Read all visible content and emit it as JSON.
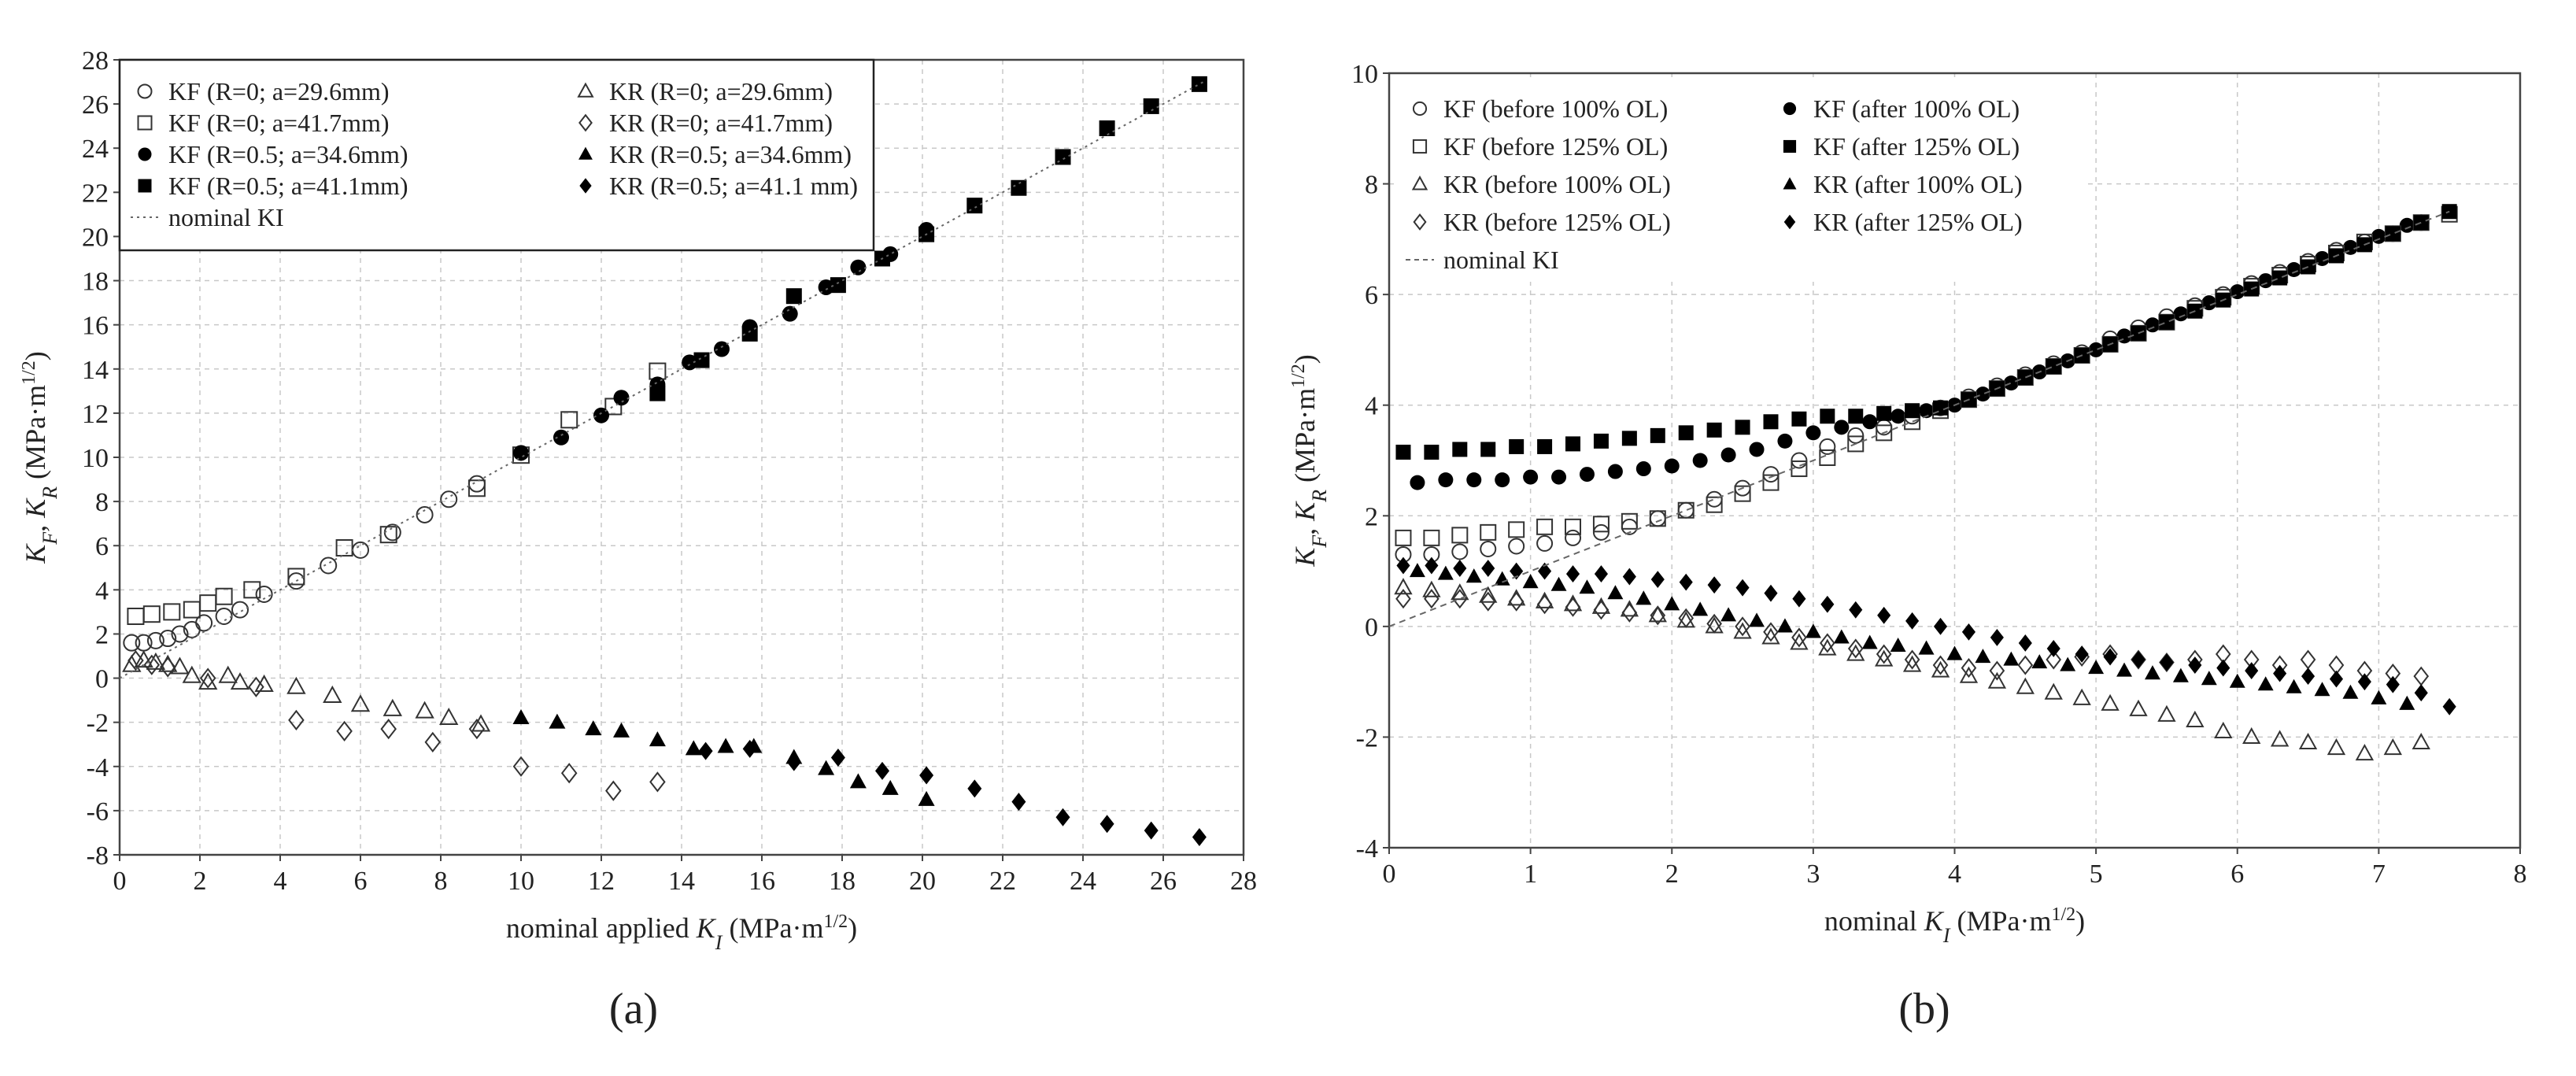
{
  "figure": {
    "panel_labels": [
      "(a)",
      "(b)"
    ]
  },
  "chart_data": [
    {
      "type": "scatter",
      "panel": "(a)",
      "title": "",
      "xlabel": "nominal applied K_I (MPa·m^1/2)",
      "ylabel": "K_F, K_R (MPa·m^1/2)",
      "xlim": [
        0,
        28
      ],
      "ylim": [
        -8,
        28
      ],
      "xticks": [
        0,
        2,
        4,
        6,
        8,
        10,
        12,
        14,
        16,
        18,
        20,
        22,
        24,
        26,
        28
      ],
      "yticks": [
        -8,
        -6,
        -4,
        -2,
        0,
        2,
        4,
        6,
        8,
        10,
        12,
        14,
        16,
        18,
        20,
        22,
        24,
        26,
        28
      ],
      "grid": true,
      "legend_position": "top-left",
      "legend_columns": 2,
      "series": [
        {
          "name": "KF (R=0; a=29.6mm)",
          "marker": "circle-open",
          "x": [
            0.3,
            0.6,
            0.9,
            1.2,
            1.5,
            1.8,
            2.1,
            2.6,
            3.0,
            3.6,
            4.4,
            5.2,
            6.0,
            6.8,
            7.6,
            8.2,
            8.9
          ],
          "y": [
            1.6,
            1.6,
            1.7,
            1.8,
            2.0,
            2.2,
            2.5,
            2.8,
            3.1,
            3.8,
            4.4,
            5.1,
            5.8,
            6.6,
            7.4,
            8.1,
            8.8
          ]
        },
        {
          "name": "KR (R=0; a=29.6mm)",
          "marker": "triangle-open",
          "x": [
            0.3,
            0.6,
            0.9,
            1.2,
            1.5,
            1.8,
            2.2,
            2.7,
            3.0,
            3.6,
            4.4,
            5.3,
            6.0,
            6.8,
            7.6,
            8.2,
            9.0
          ],
          "y": [
            0.6,
            0.8,
            0.7,
            0.6,
            0.5,
            0.1,
            -0.2,
            0.1,
            -0.2,
            -0.3,
            -0.4,
            -0.8,
            -1.2,
            -1.4,
            -1.5,
            -1.8,
            -2.1
          ]
        },
        {
          "name": "KF (R=0; a=41.7mm)",
          "marker": "square-open",
          "x": [
            0.4,
            0.8,
            1.3,
            1.8,
            2.2,
            2.6,
            3.3,
            4.4,
            5.6,
            6.7,
            8.9,
            10.0,
            11.2,
            12.3,
            13.4
          ],
          "y": [
            2.8,
            2.9,
            3.0,
            3.1,
            3.4,
            3.7,
            4.0,
            4.6,
            5.9,
            6.5,
            8.6,
            10.1,
            11.7,
            12.3,
            13.9
          ]
        },
        {
          "name": "KR (R=0; a=41.7mm)",
          "marker": "diamond-open",
          "x": [
            0.4,
            0.8,
            1.2,
            2.2,
            3.4,
            4.4,
            5.6,
            6.7,
            7.8,
            8.9,
            10.0,
            11.2,
            12.3,
            13.4
          ],
          "y": [
            0.8,
            0.6,
            0.5,
            0.0,
            -0.4,
            -1.9,
            -2.4,
            -2.3,
            -2.9,
            -2.3,
            -4.0,
            -4.3,
            -5.1,
            -4.7
          ]
        },
        {
          "name": "KF (R=0.5; a=34.6mm)",
          "marker": "circle-filled",
          "x": [
            10.0,
            11.0,
            12.0,
            12.5,
            13.4,
            14.2,
            15.0,
            15.7,
            16.7,
            17.6,
            18.4,
            19.2,
            20.1
          ],
          "y": [
            10.2,
            10.9,
            11.9,
            12.7,
            13.3,
            14.3,
            14.9,
            15.9,
            16.5,
            17.7,
            18.6,
            19.2,
            20.3
          ]
        },
        {
          "name": "KR (R=0.5; a=34.6mm)",
          "marker": "triangle-filled",
          "x": [
            10.0,
            10.9,
            11.8,
            12.5,
            13.4,
            14.3,
            15.1,
            15.8,
            16.8,
            17.6,
            18.4,
            19.2,
            20.1
          ],
          "y": [
            -1.8,
            -2.0,
            -2.3,
            -2.4,
            -2.8,
            -3.2,
            -3.1,
            -3.1,
            -3.6,
            -4.1,
            -4.7,
            -5.0,
            -5.5
          ]
        },
        {
          "name": "KF (R=0.5; a=41.1mm)",
          "marker": "square-filled",
          "x": [
            13.4,
            14.5,
            15.7,
            16.8,
            17.9,
            19.0,
            20.1,
            21.3,
            22.4,
            23.5,
            24.6,
            25.7,
            26.9
          ],
          "y": [
            12.9,
            14.4,
            15.6,
            17.3,
            17.8,
            19.0,
            20.1,
            21.4,
            22.2,
            23.6,
            24.9,
            25.9,
            26.9
          ]
        },
        {
          "name": "KR (R=0.5; a=41.1 mm)",
          "marker": "diamond-filled",
          "x": [
            14.6,
            15.7,
            16.8,
            17.9,
            19.0,
            20.1,
            21.3,
            22.4,
            23.5,
            24.6,
            25.7,
            26.9
          ],
          "y": [
            -3.3,
            -3.2,
            -3.8,
            -3.6,
            -4.2,
            -4.4,
            -5.0,
            -5.6,
            -6.3,
            -6.6,
            -6.9,
            -7.2
          ]
        },
        {
          "name": "nominal KI",
          "marker": "dotted-line",
          "x": [
            0,
            27
          ],
          "y": [
            0,
            27
          ]
        }
      ]
    },
    {
      "type": "scatter",
      "panel": "(b)",
      "title": "",
      "xlabel": "nominal K_I (MPa·m^1/2)",
      "ylabel": "K_F, K_R (MPa·m^1/2)",
      "xlim": [
        0,
        8
      ],
      "ylim": [
        -4,
        10
      ],
      "xticks": [
        0,
        1,
        2,
        3,
        4,
        5,
        6,
        7,
        8
      ],
      "yticks": [
        -4,
        -2,
        0,
        2,
        4,
        6,
        8,
        10
      ],
      "grid": true,
      "legend_position": "top-left",
      "legend_columns": 2,
      "series": [
        {
          "name": "KF (before 100% OL)",
          "marker": "circle-open",
          "x": [
            0.1,
            0.3,
            0.5,
            0.7,
            0.9,
            1.1,
            1.3,
            1.5,
            1.7,
            1.9,
            2.1,
            2.3,
            2.5,
            2.7,
            2.9,
            3.1,
            3.3,
            3.5,
            3.7,
            3.9,
            4.1,
            4.3,
            4.5,
            4.7,
            4.9,
            5.1,
            5.3,
            5.5,
            5.7,
            5.9,
            6.1,
            6.3,
            6.5,
            6.7,
            6.9,
            7.1,
            7.3
          ],
          "y": [
            1.3,
            1.3,
            1.35,
            1.4,
            1.45,
            1.5,
            1.6,
            1.7,
            1.8,
            1.95,
            2.1,
            2.3,
            2.5,
            2.75,
            3.0,
            3.25,
            3.45,
            3.6,
            3.8,
            3.95,
            4.15,
            4.35,
            4.55,
            4.75,
            4.95,
            5.2,
            5.4,
            5.6,
            5.8,
            6.0,
            6.2,
            6.4,
            6.6,
            6.8,
            6.95,
            7.1,
            7.3
          ]
        },
        {
          "name": "KF (after 100% OL)",
          "marker": "circle-filled",
          "x": [
            0.2,
            0.4,
            0.6,
            0.8,
            1.0,
            1.2,
            1.4,
            1.6,
            1.8,
            2.0,
            2.2,
            2.4,
            2.6,
            2.8,
            3.0,
            3.2,
            3.4,
            3.6,
            3.8,
            4.0,
            4.2,
            4.4,
            4.6,
            4.8,
            5.0,
            5.2,
            5.4,
            5.6,
            5.8,
            6.0,
            6.2,
            6.4,
            6.6,
            6.8,
            7.0,
            7.2
          ],
          "y": [
            2.6,
            2.65,
            2.65,
            2.65,
            2.7,
            2.7,
            2.75,
            2.8,
            2.85,
            2.9,
            3.0,
            3.1,
            3.2,
            3.35,
            3.5,
            3.6,
            3.7,
            3.8,
            3.9,
            4.0,
            4.2,
            4.4,
            4.6,
            4.8,
            5.0,
            5.25,
            5.45,
            5.65,
            5.85,
            6.05,
            6.25,
            6.45,
            6.65,
            6.85,
            7.05,
            7.25
          ]
        },
        {
          "name": "KF (before 125% OL)",
          "marker": "square-open",
          "x": [
            0.1,
            0.3,
            0.5,
            0.7,
            0.9,
            1.1,
            1.3,
            1.5,
            1.7,
            1.9,
            2.1,
            2.3,
            2.5,
            2.7,
            2.9,
            3.1,
            3.3,
            3.5,
            3.7,
            3.9,
            4.1,
            4.3,
            4.5,
            4.7,
            4.9,
            5.1,
            5.3,
            5.5,
            5.7,
            5.9,
            6.1,
            6.3,
            6.5,
            6.7,
            6.9,
            7.1,
            7.3,
            7.5
          ],
          "y": [
            1.6,
            1.6,
            1.65,
            1.7,
            1.75,
            1.8,
            1.8,
            1.85,
            1.9,
            1.95,
            2.1,
            2.2,
            2.4,
            2.6,
            2.85,
            3.05,
            3.3,
            3.5,
            3.7,
            3.9,
            4.1,
            4.3,
            4.5,
            4.7,
            4.9,
            5.1,
            5.3,
            5.5,
            5.75,
            5.95,
            6.15,
            6.35,
            6.55,
            6.75,
            6.95,
            7.1,
            7.3,
            7.45
          ]
        },
        {
          "name": "KF (after 125% OL)",
          "marker": "square-filled",
          "x": [
            0.1,
            0.3,
            0.5,
            0.7,
            0.9,
            1.1,
            1.3,
            1.5,
            1.7,
            1.9,
            2.1,
            2.3,
            2.5,
            2.7,
            2.9,
            3.1,
            3.3,
            3.5,
            3.7,
            3.9,
            4.1,
            4.3,
            4.5,
            4.7,
            4.9,
            5.1,
            5.3,
            5.5,
            5.7,
            5.9,
            6.1,
            6.3,
            6.5,
            6.7,
            6.9,
            7.1,
            7.3,
            7.5
          ],
          "y": [
            3.15,
            3.15,
            3.2,
            3.2,
            3.25,
            3.25,
            3.3,
            3.35,
            3.4,
            3.45,
            3.5,
            3.55,
            3.6,
            3.7,
            3.75,
            3.8,
            3.8,
            3.85,
            3.9,
            3.95,
            4.1,
            4.3,
            4.5,
            4.7,
            4.9,
            5.1,
            5.3,
            5.5,
            5.7,
            5.9,
            6.1,
            6.3,
            6.5,
            6.7,
            6.9,
            7.1,
            7.3,
            7.5
          ]
        },
        {
          "name": "KR (before 100% OL)",
          "marker": "triangle-open",
          "x": [
            0.1,
            0.3,
            0.5,
            0.7,
            0.9,
            1.1,
            1.3,
            1.5,
            1.7,
            1.9,
            2.1,
            2.3,
            2.5,
            2.7,
            2.9,
            3.1,
            3.3,
            3.5,
            3.7,
            3.9,
            4.1,
            4.3,
            4.5,
            4.7,
            4.9,
            5.1,
            5.3,
            5.5,
            5.7,
            5.9,
            6.1,
            6.3,
            6.5,
            6.7,
            6.9,
            7.1,
            7.3
          ],
          "y": [
            0.7,
            0.65,
            0.6,
            0.55,
            0.5,
            0.45,
            0.4,
            0.35,
            0.3,
            0.2,
            0.1,
            0.0,
            -0.1,
            -0.2,
            -0.3,
            -0.4,
            -0.5,
            -0.6,
            -0.7,
            -0.8,
            -0.9,
            -1.0,
            -1.1,
            -1.2,
            -1.3,
            -1.4,
            -1.5,
            -1.6,
            -1.7,
            -1.9,
            -2.0,
            -2.05,
            -2.1,
            -2.2,
            -2.3,
            -2.2,
            -2.1
          ]
        },
        {
          "name": "KR (after 100% OL)",
          "marker": "triangle-filled",
          "x": [
            0.2,
            0.4,
            0.6,
            0.8,
            1.0,
            1.2,
            1.4,
            1.6,
            1.8,
            2.0,
            2.2,
            2.4,
            2.6,
            2.8,
            3.0,
            3.2,
            3.4,
            3.6,
            3.8,
            4.0,
            4.2,
            4.4,
            4.6,
            4.8,
            5.0,
            5.2,
            5.4,
            5.6,
            5.8,
            6.0,
            6.2,
            6.4,
            6.6,
            6.8,
            7.0,
            7.2
          ],
          "y": [
            1.0,
            0.95,
            0.9,
            0.85,
            0.8,
            0.75,
            0.7,
            0.6,
            0.5,
            0.4,
            0.3,
            0.2,
            0.1,
            0.0,
            -0.1,
            -0.2,
            -0.3,
            -0.35,
            -0.4,
            -0.5,
            -0.55,
            -0.6,
            -0.65,
            -0.7,
            -0.75,
            -0.8,
            -0.85,
            -0.9,
            -0.95,
            -1.0,
            -1.05,
            -1.1,
            -1.15,
            -1.2,
            -1.3,
            -1.4
          ]
        },
        {
          "name": "KR (before 125% OL)",
          "marker": "diamond-open",
          "x": [
            0.1,
            0.3,
            0.5,
            0.7,
            0.9,
            1.1,
            1.3,
            1.5,
            1.7,
            1.9,
            2.1,
            2.3,
            2.5,
            2.7,
            2.9,
            3.1,
            3.3,
            3.5,
            3.7,
            3.9,
            4.1,
            4.3,
            4.5,
            4.7,
            4.9,
            5.1,
            5.3,
            5.5,
            5.7,
            5.9,
            6.1,
            6.3,
            6.5,
            6.7,
            6.9,
            7.1,
            7.3
          ],
          "y": [
            0.5,
            0.5,
            0.5,
            0.45,
            0.45,
            0.4,
            0.35,
            0.3,
            0.25,
            0.2,
            0.15,
            0.05,
            0.0,
            -0.1,
            -0.2,
            -0.3,
            -0.4,
            -0.5,
            -0.6,
            -0.7,
            -0.75,
            -0.8,
            -0.7,
            -0.6,
            -0.55,
            -0.5,
            -0.6,
            -0.65,
            -0.6,
            -0.5,
            -0.6,
            -0.7,
            -0.6,
            -0.7,
            -0.8,
            -0.85,
            -0.9
          ]
        },
        {
          "name": "KR (after 125% OL)",
          "marker": "diamond-filled",
          "x": [
            0.1,
            0.3,
            0.5,
            0.7,
            0.9,
            1.1,
            1.3,
            1.5,
            1.7,
            1.9,
            2.1,
            2.3,
            2.5,
            2.7,
            2.9,
            3.1,
            3.3,
            3.5,
            3.7,
            3.9,
            4.1,
            4.3,
            4.5,
            4.7,
            4.9,
            5.1,
            5.3,
            5.5,
            5.7,
            5.9,
            6.1,
            6.3,
            6.5,
            6.7,
            6.9,
            7.1,
            7.3,
            7.5
          ],
          "y": [
            1.1,
            1.1,
            1.05,
            1.05,
            1.0,
            1.0,
            0.95,
            0.95,
            0.9,
            0.85,
            0.8,
            0.75,
            0.7,
            0.6,
            0.5,
            0.4,
            0.3,
            0.2,
            0.1,
            0.0,
            -0.1,
            -0.2,
            -0.3,
            -0.4,
            -0.5,
            -0.55,
            -0.6,
            -0.65,
            -0.7,
            -0.75,
            -0.8,
            -0.85,
            -0.9,
            -0.95,
            -1.0,
            -1.05,
            -1.2,
            -1.45
          ]
        },
        {
          "name": "nominal KI",
          "marker": "dashed-line",
          "x": [
            0,
            7.5
          ],
          "y": [
            0,
            7.5
          ]
        }
      ]
    }
  ]
}
